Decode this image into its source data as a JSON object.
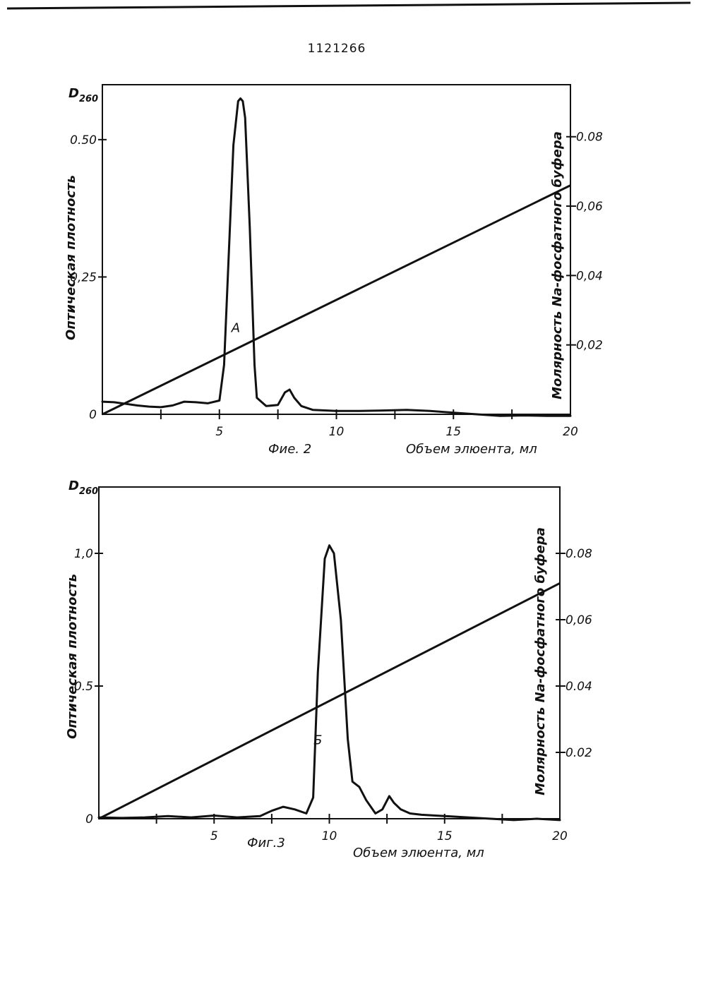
{
  "page_number": "1121266",
  "chart_data": [
    {
      "type": "line",
      "caption": "Фие. 2",
      "y_symbol": "D",
      "y_symbol_sub": "260",
      "ylabel": "Оптическая плотность",
      "ylabel_right": "Молярность Na-фосфатного буфера",
      "xlabel": "Объем элюента, мл",
      "xlim": [
        0,
        20
      ],
      "x_ticks": [
        {
          "value": 5,
          "label": "5"
        },
        {
          "value": 10,
          "label": "10"
        },
        {
          "value": 15,
          "label": "15"
        },
        {
          "value": 20,
          "label": "20"
        }
      ],
      "x_minor_ticks": [
        2.5,
        7.5,
        12.5,
        17.5
      ],
      "ylim": [
        0,
        0.6
      ],
      "y_ticks": [
        {
          "value": 0,
          "label": "0"
        },
        {
          "value": 0.25,
          "label": "0,25"
        },
        {
          "value": 0.5,
          "label": "0.50"
        }
      ],
      "y2lim": [
        0,
        0.095
      ],
      "y2_ticks": [
        {
          "value": 0.02,
          "label": "0,02"
        },
        {
          "value": 0.04,
          "label": "0,04"
        },
        {
          "value": 0.06,
          "label": "0,06"
        },
        {
          "value": 0.08,
          "label": "0.08"
        }
      ],
      "series": [
        {
          "x": [
            0,
            0.5,
            1,
            1.5,
            2,
            2.5,
            3,
            3.5,
            4,
            4.5,
            5,
            5.2,
            5.4,
            5.6,
            5.8,
            5.9,
            6.0,
            6.1,
            6.3,
            6.5,
            6.6,
            7,
            7.5,
            7.8,
            8.0,
            8.2,
            8.5,
            9,
            10,
            11,
            12,
            13,
            14,
            15,
            16,
            17,
            18,
            19,
            20
          ],
          "y": [
            0.023,
            0.022,
            0.019,
            0.016,
            0.014,
            0.013,
            0.016,
            0.023,
            0.022,
            0.02,
            0.025,
            0.09,
            0.29,
            0.49,
            0.57,
            0.575,
            0.57,
            0.54,
            0.34,
            0.09,
            0.03,
            0.015,
            0.017,
            0.04,
            0.045,
            0.03,
            0.015,
            0.008,
            0.006,
            0.006,
            0.007,
            0.008,
            0.006,
            0.003,
            0.0,
            -0.003,
            -0.002,
            -0.003,
            -0.003
          ]
        },
        {
          "x": [
            0,
            20
          ],
          "y": [
            0.0,
            0.066
          ]
        }
      ],
      "annotations": [
        {
          "label": "А",
          "x": 5.7,
          "y": 0.15
        }
      ]
    },
    {
      "type": "line",
      "caption": "Фиг.3",
      "y_symbol": "D",
      "y_symbol_sub": "260",
      "ylabel": "Оптическая плотность",
      "ylabel_right": "Молярность Na-фосфатного буфера",
      "xlabel": "Объем элюента, мл",
      "xlim": [
        0,
        20
      ],
      "x_ticks": [
        {
          "value": 5,
          "label": "5"
        },
        {
          "value": 10,
          "label": "10"
        },
        {
          "value": 15,
          "label": "15"
        },
        {
          "value": 20,
          "label": "20"
        }
      ],
      "x_minor_ticks": [
        2.5,
        7.5,
        12.5,
        17.5
      ],
      "ylim": [
        0,
        1.25
      ],
      "y_ticks": [
        {
          "value": 0,
          "label": "0"
        },
        {
          "value": 0.5,
          "label": "0.5"
        },
        {
          "value": 1.0,
          "label": "1,0"
        }
      ],
      "y2lim": [
        0,
        0.1
      ],
      "y2_ticks": [
        {
          "value": 0.02,
          "label": "0.02"
        },
        {
          "value": 0.04,
          "label": "0.04"
        },
        {
          "value": 0.06,
          "label": "0,06"
        },
        {
          "value": 0.08,
          "label": "0.08"
        }
      ],
      "series": [
        {
          "x": [
            0,
            1,
            2,
            3,
            4,
            5,
            6,
            7,
            7.5,
            8,
            8.5,
            9,
            9.3,
            9.5,
            9.8,
            10.0,
            10.2,
            10.5,
            10.8,
            11.0,
            11.3,
            11.6,
            12.0,
            12.3,
            12.6,
            12.8,
            13.1,
            13.5,
            14,
            15,
            16,
            17,
            18,
            19,
            20
          ],
          "y": [
            0.005,
            0.003,
            0.005,
            0.01,
            0.005,
            0.012,
            0.005,
            0.01,
            0.03,
            0.045,
            0.035,
            0.02,
            0.08,
            0.55,
            0.98,
            1.03,
            1.0,
            0.75,
            0.3,
            0.14,
            0.12,
            0.07,
            0.02,
            0.035,
            0.085,
            0.06,
            0.035,
            0.02,
            0.015,
            0.01,
            0.005,
            0.0,
            -0.005,
            0.0,
            -0.005
          ]
        },
        {
          "x": [
            0,
            20
          ],
          "y": [
            0.0,
            0.071
          ]
        }
      ],
      "annotations": [
        {
          "label": "Б",
          "x": 9.5,
          "y": 0.28
        }
      ]
    }
  ]
}
